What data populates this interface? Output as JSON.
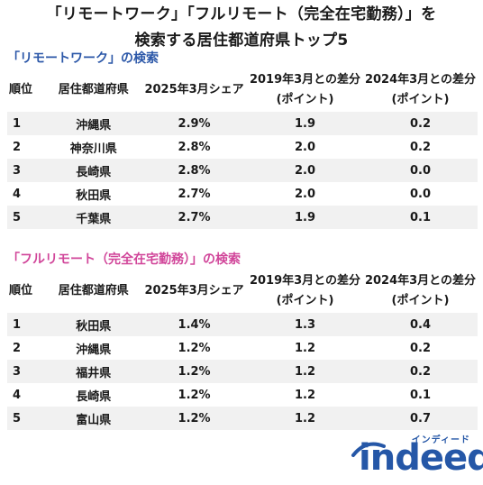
{
  "title": {
    "line1": "「リモートワーク」「フルリモート（完全在宅勤務）」を",
    "line2": "検索する居住都道府県トップ5"
  },
  "colors": {
    "section1": "#2b57a8",
    "section2": "#d1469a",
    "brand": "#2557a7"
  },
  "section1": {
    "heading": "「リモートワーク」の検索",
    "headers": [
      "順位",
      "居住都道府県",
      "2025年3月シェア",
      "2019年3月との差分(ポイント)",
      "2024年3月との差分(ポイント)"
    ],
    "rows": [
      {
        "rank": "1",
        "pref": "沖縄県",
        "share": "2.9%",
        "d2019": "1.9",
        "d2024": "0.2"
      },
      {
        "rank": "2",
        "pref": "神奈川県",
        "share": "2.8%",
        "d2019": "2.0",
        "d2024": "0.2"
      },
      {
        "rank": "3",
        "pref": "長崎県",
        "share": "2.8%",
        "d2019": "2.0",
        "d2024": "0.0"
      },
      {
        "rank": "4",
        "pref": "秋田県",
        "share": "2.7%",
        "d2019": "2.0",
        "d2024": "0.0"
      },
      {
        "rank": "5",
        "pref": "千葉県",
        "share": "2.7%",
        "d2019": "1.9",
        "d2024": "0.1"
      }
    ]
  },
  "section2": {
    "heading": "「フルリモート（完全在宅勤務）」の検索",
    "headers": [
      "順位",
      "居住都道府県",
      "2025年3月シェア",
      "2019年3月との差分(ポイント)",
      "2024年3月との差分(ポイント)"
    ],
    "rows": [
      {
        "rank": "1",
        "pref": "秋田県",
        "share": "1.4%",
        "d2019": "1.3",
        "d2024": "0.4"
      },
      {
        "rank": "2",
        "pref": "沖縄県",
        "share": "1.2%",
        "d2019": "1.2",
        "d2024": "0.2"
      },
      {
        "rank": "3",
        "pref": "福井県",
        "share": "1.2%",
        "d2019": "1.2",
        "d2024": "0.2"
      },
      {
        "rank": "4",
        "pref": "長崎県",
        "share": "1.2%",
        "d2019": "1.2",
        "d2024": "0.1"
      },
      {
        "rank": "5",
        "pref": "富山県",
        "share": "1.2%",
        "d2019": "1.2",
        "d2024": "0.7"
      }
    ]
  },
  "logo": {
    "small": "インディード",
    "word": "indeed",
    "icon": "indeed-logo-arc-icon"
  }
}
